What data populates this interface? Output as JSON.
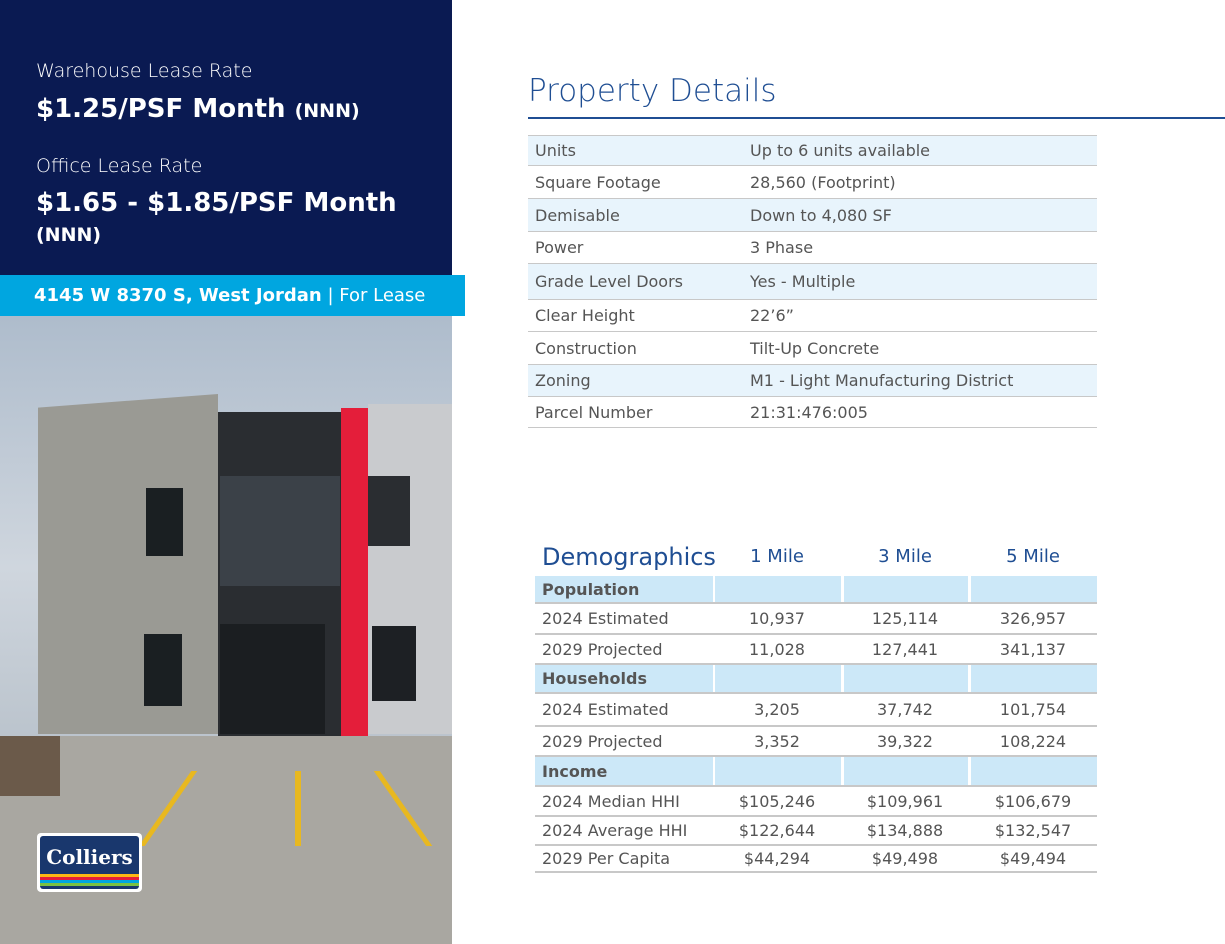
{
  "rates": {
    "warehouse_label": "Warehouse Lease Rate",
    "warehouse_value": "$1.25/PSF Month",
    "warehouse_suffix": "(NNN)",
    "office_label": "Office Lease Rate",
    "office_value": "$1.65 - $1.85/PSF Month",
    "office_suffix": "(NNN)"
  },
  "address": {
    "street": "4145 W 8370 S, West Jordan",
    "separator": "|",
    "status": "For Lease"
  },
  "logo": {
    "text": "Colliers"
  },
  "property": {
    "title": "Property Details",
    "rows": [
      {
        "label": "Units",
        "value": "Up to 6 units available"
      },
      {
        "label": "Square Footage",
        "value": "28,560 (Footprint)"
      },
      {
        "label": "Demisable",
        "value": "Down to 4,080 SF"
      },
      {
        "label": "Power",
        "value": "3 Phase"
      },
      {
        "label": "Grade Level Doors",
        "value": "Yes - Multiple"
      },
      {
        "label": "Clear Height",
        "value": "22’6”"
      },
      {
        "label": "Construction",
        "value": "Tilt-Up Concrete"
      },
      {
        "label": "Zoning",
        "value": "M1 - Light Manufacturing District"
      },
      {
        "label": "Parcel Number",
        "value": "21:31:476:005"
      }
    ]
  },
  "demographics": {
    "title": "Demographics",
    "columns": [
      "1 Mile",
      "3 Mile",
      "5 Mile"
    ],
    "rows": [
      {
        "label": "Population",
        "section": true,
        "v": [
          "",
          "",
          ""
        ]
      },
      {
        "label": "2024 Estimated",
        "v": [
          "10,937",
          "125,114",
          "326,957"
        ]
      },
      {
        "label": "2029 Projected",
        "v": [
          "11,028",
          "127,441",
          "341,137"
        ]
      },
      {
        "label": "Households",
        "section": true,
        "v": [
          "",
          "",
          ""
        ]
      },
      {
        "label": "2024 Estimated",
        "v": [
          "3,205",
          "37,742",
          "101,754"
        ]
      },
      {
        "label": "2029 Projected",
        "v": [
          "3,352",
          "39,322",
          "108,224"
        ]
      },
      {
        "label": "Income",
        "section": true,
        "v": [
          "",
          "",
          ""
        ]
      },
      {
        "label": "2024 Median HHI",
        "v": [
          "$105,246",
          "$109,961",
          "$106,679"
        ]
      },
      {
        "label": "2024 Average HHI",
        "v": [
          "$122,644",
          "$134,888",
          "$132,547"
        ]
      },
      {
        "label": "2029 Per Capita",
        "v": [
          "$44,294",
          "$49,498",
          "$49,494"
        ]
      }
    ]
  },
  "colors": {
    "navy": "#0a1a52",
    "accent": "#00a6e0",
    "title_blue": "#1f4e93"
  }
}
